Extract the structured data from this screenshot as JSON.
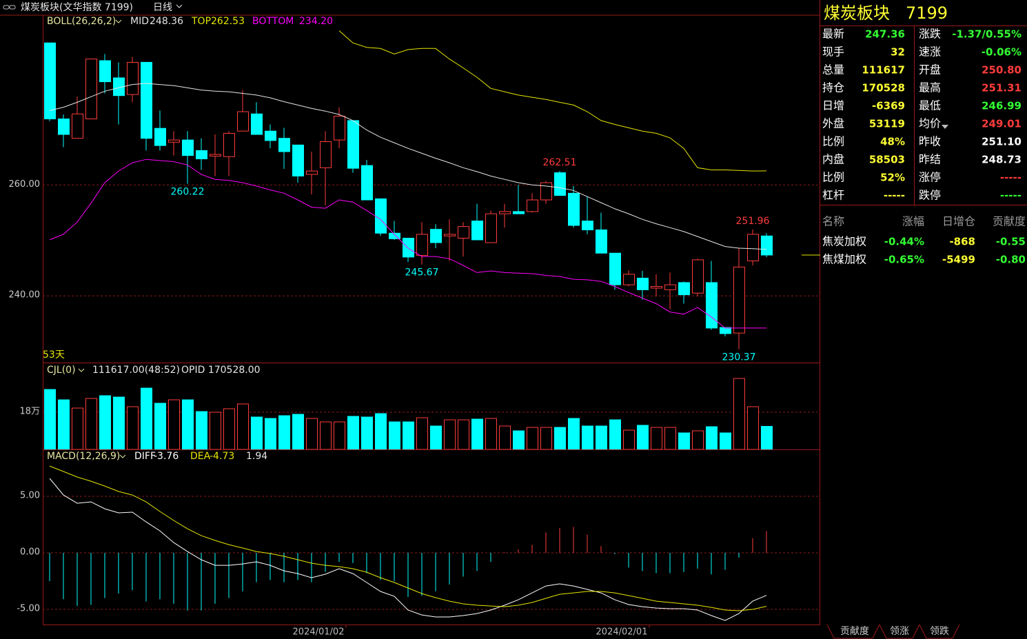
{
  "header": {
    "title": "煤炭板块(文华指数  7199)",
    "period": "日线"
  },
  "chart_data": [
    {
      "type": "candlestick",
      "name": "BOLL(26,26,2)",
      "period_label": "53天",
      "categories": [
        null,
        null,
        null,
        null,
        null,
        null,
        null,
        null,
        null,
        null,
        null,
        null,
        null,
        null,
        null,
        null,
        null,
        null,
        null,
        "2024/01/02",
        null,
        null,
        null,
        null,
        null,
        null,
        null,
        null,
        null,
        null,
        null,
        null,
        null,
        null,
        null,
        null,
        null,
        null,
        null,
        null,
        null,
        "2024/02/01",
        null,
        null,
        null,
        null,
        null,
        null,
        null,
        null,
        null,
        null,
        null
      ],
      "open": [
        285.6,
        271.9,
        268.4,
        271.9,
        282.4,
        279.3,
        276.3,
        282.1,
        270.2,
        267.7,
        268.1,
        266.2,
        265.2,
        265.1,
        269.7,
        272.8,
        269.7,
        268.4,
        267.2,
        261.9,
        263.1,
        268.1,
        271.6,
        263.5,
        257.5,
        251.3,
        250.4,
        247.3,
        252.0,
        250.8,
        250.4,
        253.5,
        249.6,
        254.8,
        255.2,
        255.2,
        257.3,
        262.2,
        258.5,
        253.5,
        251.9,
        247.7,
        242.0,
        243.2,
        241.4,
        241.1,
        242.4,
        240.5,
        242.4,
        234.3,
        233.3,
        246.3,
        250.8
      ],
      "high": [
        285.6,
        272.7,
        275.9,
        282.7,
        283.6,
        282.1,
        283.1,
        282.1,
        273.4,
        269.7,
        269.7,
        268.4,
        269.1,
        269.7,
        277.1,
        274.9,
        270.9,
        270.3,
        267.2,
        266.0,
        269.7,
        274.0,
        271.6,
        264.5,
        257.5,
        253.5,
        250.4,
        253.3,
        252.9,
        253.8,
        253.3,
        256.6,
        255.4,
        256.6,
        260.0,
        258.5,
        260.7,
        262.51,
        259.8,
        257.9,
        255.0,
        247.7,
        244.6,
        244.5,
        243.9,
        244.2,
        242.6,
        246.7,
        246.3,
        234.3,
        248.6,
        251.96,
        251.31
      ],
      "low": [
        271.5,
        266.8,
        268.4,
        271.9,
        276.5,
        270.9,
        274.9,
        266.2,
        266.2,
        265.3,
        260.22,
        262.7,
        261.6,
        261.6,
        269.7,
        269.1,
        266.6,
        262.9,
        260.4,
        258.3,
        256.3,
        266.6,
        262.2,
        257.3,
        250.8,
        250.1,
        246.1,
        245.67,
        248.6,
        246.3,
        247.1,
        250.1,
        249.6,
        252.3,
        254.8,
        255.0,
        256.6,
        258.1,
        252.3,
        251.1,
        247.7,
        241.1,
        241.7,
        239.3,
        239.9,
        237.6,
        238.6,
        239.9,
        233.9,
        232.7,
        230.37,
        245.5,
        246.99
      ],
      "close": [
        271.9,
        269.1,
        272.8,
        282.7,
        278.6,
        276.1,
        282.1,
        268.4,
        267.1,
        268.1,
        265.3,
        264.7,
        265.5,
        269.3,
        273.2,
        269.1,
        268.0,
        266.0,
        261.6,
        262.5,
        267.8,
        272.4,
        263.0,
        257.3,
        251.3,
        250.3,
        247.0,
        251.1,
        249.6,
        251.1,
        252.5,
        250.1,
        254.8,
        255.2,
        254.8,
        257.3,
        260.4,
        258.1,
        252.7,
        251.9,
        247.7,
        242.0,
        243.9,
        241.1,
        241.7,
        242.0,
        240.2,
        246.5,
        234.2,
        233.2,
        245.2,
        251.1,
        247.36
      ],
      "up_color": "#ff3c3c",
      "down_color": "#00ffff",
      "series": [
        {
          "name": "MID",
          "color": "#e6e6e6",
          "legend_label": "248.36",
          "values": [
            273.4,
            274.0,
            274.9,
            275.9,
            276.9,
            277.5,
            278.1,
            278.3,
            278.1,
            277.9,
            277.5,
            277.1,
            276.9,
            276.8,
            276.5,
            276.2,
            275.7,
            275.0,
            274.4,
            273.8,
            273.3,
            272.7,
            271.6,
            269.9,
            268.6,
            267.6,
            266.6,
            265.7,
            264.8,
            264.0,
            263.1,
            262.4,
            261.6,
            261.0,
            260.4,
            260.0,
            259.8,
            259.5,
            259.0,
            257.9,
            256.8,
            255.7,
            254.8,
            253.8,
            253.0,
            252.3,
            251.6,
            250.7,
            249.8,
            248.9,
            248.6,
            248.5,
            248.36
          ]
        },
        {
          "name": "TOP",
          "color": "#e6e600",
          "legend_label": "262.53",
          "values": [
            null,
            null,
            null,
            null,
            null,
            null,
            null,
            null,
            null,
            null,
            null,
            null,
            null,
            null,
            null,
            null,
            null,
            null,
            null,
            null,
            null,
            287.8,
            285.6,
            284.8,
            284.6,
            283.6,
            284.4,
            284.6,
            284.6,
            282.7,
            281.1,
            279.4,
            277.4,
            276.8,
            276.2,
            275.8,
            275.4,
            274.9,
            274.4,
            273.2,
            271.6,
            270.9,
            270.3,
            269.7,
            269.3,
            268.5,
            266.6,
            263.1,
            262.7,
            262.7,
            262.6,
            262.5,
            262.53
          ]
        },
        {
          "name": "BOTTOM",
          "color": "#ff00ff",
          "legend_label": "234.20",
          "values": [
            250.1,
            251.1,
            253.3,
            256.7,
            260.4,
            262.5,
            264.0,
            264.6,
            264.4,
            264.2,
            263.6,
            261.9,
            261.0,
            260.8,
            260.4,
            259.8,
            259.1,
            258.5,
            257.3,
            256.0,
            255.8,
            257.3,
            256.9,
            255.4,
            253.8,
            251.1,
            248.6,
            247.1,
            247.1,
            246.7,
            245.5,
            244.2,
            244.5,
            244.2,
            244.1,
            244.0,
            243.7,
            243.5,
            243.0,
            242.9,
            242.6,
            241.7,
            240.6,
            239.6,
            238.6,
            237.1,
            236.7,
            237.9,
            236.2,
            234.2,
            234.2,
            234.2,
            234.2
          ]
        }
      ],
      "annotations": [
        {
          "index": 10,
          "value": 260.22
        },
        {
          "index": 27,
          "value": 245.67
        },
        {
          "index": 37,
          "value": 262.51
        },
        {
          "index": 50,
          "value": 230.37
        },
        {
          "index": 51,
          "value": 251.96
        }
      ],
      "ylim": [
        228.1,
        290.6
      ],
      "yticks": [
        {
          "value": 260,
          "label": "260.00"
        },
        {
          "value": 240,
          "label": "240.00"
        }
      ],
      "grid": true
    },
    {
      "type": "volume",
      "name": "CJL(0)",
      "legend_text": "111617.00(48:52)",
      "legend_extra": "OPID 170528.00",
      "values": [
        290000,
        240000,
        200000,
        246700,
        260000,
        253300,
        206700,
        296700,
        223300,
        240000,
        240000,
        183300,
        180000,
        196700,
        220000,
        156700,
        150000,
        163300,
        170000,
        150000,
        133300,
        133300,
        160000,
        156700,
        173300,
        133300,
        133300,
        153300,
        113300,
        143300,
        143300,
        146700,
        150000,
        113300,
        90000,
        106700,
        106700,
        106700,
        150000,
        113300,
        113300,
        143300,
        93300,
        116700,
        106700,
        106700,
        80000,
        90000,
        110000,
        80000,
        343300,
        206700,
        111617
      ],
      "ylim": [
        0,
        416700
      ],
      "yticks": [
        {
          "value": 180000,
          "label": "18万"
        }
      ],
      "grid": true
    },
    {
      "type": "macd",
      "name": "MACD(12,26,9)",
      "series": [
        {
          "name": "DIFF",
          "color": "#ffffff",
          "values": [
            6.59,
            5.12,
            4.39,
            4.51,
            3.9,
            3.54,
            3.6,
            2.74,
            1.95,
            0.91,
            0.12,
            -0.61,
            -1.1,
            -1.1,
            -0.98,
            -0.79,
            -1.1,
            -1.59,
            -1.83,
            -2.2,
            -1.89,
            -1.4,
            -1.83,
            -2.62,
            -3.41,
            -3.84,
            -5.06,
            -5.49,
            -5.67,
            -5.67,
            -5.55,
            -5.37,
            -5.06,
            -4.63,
            -4.15,
            -3.54,
            -2.93,
            -2.74,
            -2.93,
            -3.23,
            -3.54,
            -4.15,
            -4.57,
            -4.76,
            -4.88,
            -4.94,
            -4.94,
            -5.06,
            -5.55,
            -5.98,
            -5.37,
            -4.27,
            -3.76
          ]
        },
        {
          "name": "DEA",
          "color": "#e6e600",
          "values": [
            7.68,
            7.2,
            6.71,
            6.34,
            5.91,
            5.43,
            5.12,
            4.51,
            3.66,
            2.87,
            2.13,
            1.52,
            1.1,
            0.73,
            0.43,
            0.12,
            -0.06,
            -0.3,
            -0.61,
            -0.91,
            -1.1,
            -1.22,
            -1.4,
            -1.71,
            -2.2,
            -2.62,
            -3.11,
            -3.6,
            -3.96,
            -4.27,
            -4.51,
            -4.63,
            -4.7,
            -4.76,
            -4.63,
            -4.39,
            -4.02,
            -3.66,
            -3.54,
            -3.41,
            -3.41,
            -3.54,
            -3.78,
            -4.02,
            -4.27,
            -4.39,
            -4.51,
            -4.63,
            -4.82,
            -5.06,
            -5.12,
            -5.0,
            -4.73
          ]
        }
      ],
      "histogram": [
        -2.5,
        -4.1,
        -4.7,
        -4.6,
        -4.0,
        -3.6,
        -3.3,
        -4.3,
        -4.1,
        -4.5,
        -5.1,
        -5.1,
        -4.5,
        -4.0,
        -3.4,
        -2.6,
        -2.4,
        -2.6,
        -2.4,
        -2.6,
        -1.7,
        -0.8,
        -0.9,
        -1.8,
        -2.4,
        -2.5,
        -3.9,
        -3.8,
        -3.4,
        -2.8,
        -2.1,
        -1.6,
        -0.8,
        0.06,
        0.3,
        0.7,
        1.8,
        2.2,
        2.3,
        1.6,
        0.6,
        -0.1,
        -1.3,
        -1.6,
        -1.8,
        -1.8,
        -1.7,
        -1.4,
        -1.9,
        -1.5,
        -0.4,
        1.3,
        1.94
      ],
      "ylim": [
        -6.34,
        9.09
      ],
      "yticks": [
        {
          "value": 5,
          "label": "5.00"
        },
        {
          "value": 0,
          "label": "0.00"
        },
        {
          "value": -5,
          "label": "-5.00"
        }
      ],
      "grid": true
    }
  ],
  "quote": {
    "title": "煤炭板块",
    "code": "7199",
    "rows": [
      [
        {
          "label": "最新",
          "value": "247.36",
          "color": "#33ff33"
        },
        {
          "label": "涨跌",
          "value": "-1.37/0.55%",
          "color": "#33ff33"
        }
      ],
      [
        {
          "label": "现手",
          "value": "32",
          "color": "#ffff33"
        },
        {
          "label": "速涨",
          "value": "-0.06%",
          "color": "#33ff33"
        }
      ],
      [
        {
          "label": "总量",
          "value": "111617",
          "color": "#ffff33"
        },
        {
          "label": "开盘",
          "value": "250.80",
          "color": "#ff3c3c"
        }
      ],
      [
        {
          "label": "持仓",
          "value": "170528",
          "color": "#ffff33"
        },
        {
          "label": "最高",
          "value": "251.31",
          "color": "#ff3c3c"
        }
      ],
      [
        {
          "label": "日增",
          "value": "-6369",
          "color": "#ffff33"
        },
        {
          "label": "最低",
          "value": "246.99",
          "color": "#33ff33"
        }
      ],
      [
        {
          "label": "外盘",
          "value": "53119",
          "color": "#ffff33"
        },
        {
          "label": "均价",
          "value": "249.01",
          "color": "#ff3c3c"
        }
      ],
      [
        {
          "label": "比例",
          "value": "48%",
          "color": "#ffff33"
        },
        {
          "label": "昨收",
          "value": "251.10",
          "color": "#ffffff"
        }
      ],
      [
        {
          "label": "内盘",
          "value": "58503",
          "color": "#ffff33"
        },
        {
          "label": "昨结",
          "value": "248.73",
          "color": "#ffffff"
        }
      ],
      [
        {
          "label": "比例",
          "value": "52%",
          "color": "#ffff33"
        },
        {
          "label": "涨停",
          "value": "-----",
          "color": "#ff3c3c"
        }
      ],
      [
        {
          "label": "杠杆",
          "value": "-----",
          "color": "#ffff33"
        },
        {
          "label": "跌停",
          "value": "-----",
          "color": "#33ff33"
        }
      ]
    ],
    "components": {
      "columns": [
        "名称",
        "涨幅",
        "日增仓",
        "贡献度"
      ],
      "rows": [
        [
          "焦炭加权",
          "-0.44%",
          "-868",
          "-0.55"
        ],
        [
          "焦煤加权",
          "-0.65%",
          "-5499",
          "-0.80"
        ]
      ],
      "colors": [
        "#ffffff",
        "#33ff33",
        "#ffff33",
        "#33ff33"
      ]
    }
  },
  "tabs": [
    "贡献度",
    "领涨",
    "领跌"
  ]
}
